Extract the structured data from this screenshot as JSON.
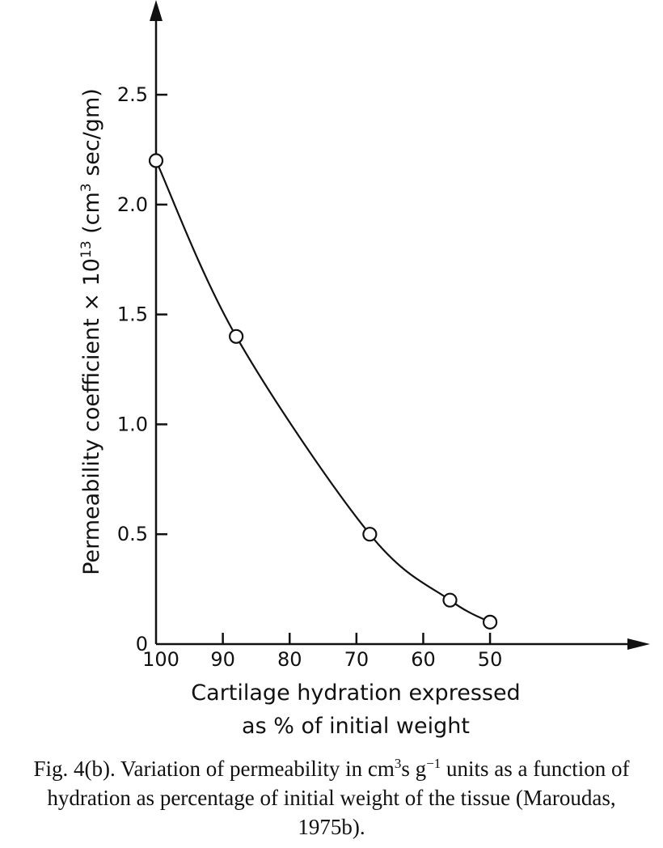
{
  "chart_data": {
    "type": "line",
    "title": "",
    "xlabel_line1": "Cartilage hydration expressed",
    "xlabel_line2": "as % of initial weight",
    "ylabel_main": "Permeability coefficient × 10",
    "ylabel_exp": "13",
    "ylabel_unit_open": " (cm",
    "ylabel_unit_exp": "3",
    "ylabel_unit_close": " sec/gm)",
    "x_ticks": [
      100,
      90,
      80,
      70,
      60,
      50
    ],
    "x_tick_labels": [
      "100",
      "90",
      "80",
      "70",
      "60",
      "50"
    ],
    "y_ticks": [
      0,
      0.5,
      1.0,
      1.5,
      2.0,
      2.5
    ],
    "y_tick_labels": [
      "0",
      "0.5",
      "1.0",
      "1.5",
      "2.0",
      "2.5"
    ],
    "xlim": [
      100,
      35
    ],
    "ylim": [
      0,
      2.85
    ],
    "grid": false,
    "series": [
      {
        "x": [
          100,
          88,
          68,
          56,
          50
        ],
        "y": [
          2.2,
          1.4,
          0.5,
          0.2,
          0.1
        ]
      }
    ]
  },
  "caption": {
    "lead": "Fig. 4(b). Variation of permeability in cm",
    "sup1": "3",
    "mid1": "s g",
    "sup2": "−1",
    "rest": " units as a function of hydration as percentage of initial weight of the tissue (Maroudas, 1975b)."
  }
}
